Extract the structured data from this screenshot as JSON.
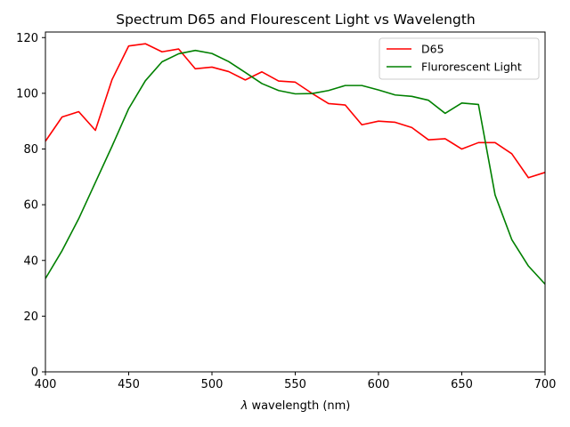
{
  "chart_data": {
    "type": "line",
    "title": "Spectrum D65 and Flourescent Light vs Wavelength",
    "xlabel_symbol": "λ",
    "xlabel_text": " wavelength (nm)",
    "ylabel": "",
    "xlim": [
      400,
      700
    ],
    "ylim": [
      0,
      122
    ],
    "xticks": [
      400,
      450,
      500,
      550,
      600,
      650,
      700
    ],
    "yticks": [
      0,
      20,
      40,
      60,
      80,
      100,
      120
    ],
    "grid": false,
    "legend_position": "top-right",
    "x": [
      400,
      410,
      420,
      430,
      440,
      450,
      460,
      470,
      480,
      490,
      500,
      510,
      520,
      530,
      540,
      550,
      560,
      570,
      580,
      590,
      600,
      610,
      620,
      630,
      640,
      650,
      660,
      670,
      680,
      690,
      700
    ],
    "series": [
      {
        "name": "D65",
        "color": "#ff0000",
        "values": [
          82.8,
          91.5,
          93.4,
          86.7,
          104.9,
          117.0,
          117.8,
          114.9,
          115.9,
          108.8,
          109.4,
          107.8,
          104.8,
          107.7,
          104.4,
          104.0,
          100.0,
          96.3,
          95.8,
          88.7,
          90.0,
          89.6,
          87.7,
          83.3,
          83.7,
          80.0,
          82.3,
          82.3,
          78.3,
          69.7,
          71.6
        ]
      },
      {
        "name": "Flurorescent Light",
        "color": "#008000",
        "values": [
          33.5,
          43.5,
          55.0,
          68.0,
          81.0,
          94.5,
          104.5,
          111.3,
          114.2,
          115.4,
          114.3,
          111.4,
          107.5,
          103.5,
          101.0,
          99.8,
          99.9,
          101.0,
          102.8,
          102.8,
          101.2,
          99.4,
          98.9,
          97.5,
          92.8,
          96.5,
          96.0,
          63.5,
          47.5,
          38.0,
          31.5
        ]
      }
    ]
  }
}
